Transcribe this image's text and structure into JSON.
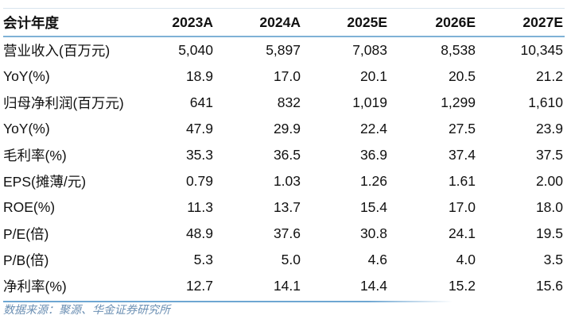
{
  "header": {
    "label": "会计年度",
    "years": [
      "2023A",
      "2024A",
      "2025E",
      "2026E",
      "2027E"
    ]
  },
  "rows": [
    {
      "label": "营业收入(百万元)",
      "values": [
        "5,040",
        "5,897",
        "7,083",
        "8,538",
        "10,345"
      ]
    },
    {
      "label": "YoY(%)",
      "values": [
        "18.9",
        "17.0",
        "20.1",
        "20.5",
        "21.2"
      ]
    },
    {
      "label": "归母净利润(百万元)",
      "values": [
        "641",
        "832",
        "1,019",
        "1,299",
        "1,610"
      ]
    },
    {
      "label": "YoY(%)",
      "values": [
        "47.9",
        "29.9",
        "22.4",
        "27.5",
        "23.9"
      ]
    },
    {
      "label": "毛利率(%)",
      "values": [
        "35.3",
        "36.5",
        "36.9",
        "37.4",
        "37.5"
      ]
    },
    {
      "label": "EPS(摊薄/元)",
      "values": [
        "0.79",
        "1.03",
        "1.26",
        "1.61",
        "2.00"
      ]
    },
    {
      "label": "ROE(%)",
      "values": [
        "11.3",
        "13.7",
        "15.4",
        "17.0",
        "18.0"
      ]
    },
    {
      "label": "P/E(倍)",
      "values": [
        "48.9",
        "37.6",
        "30.8",
        "24.1",
        "19.5"
      ]
    },
    {
      "label": "P/B(倍)",
      "values": [
        "5.3",
        "5.0",
        "4.6",
        "4.0",
        "3.5"
      ]
    },
    {
      "label": "净利率(%)",
      "values": [
        "12.7",
        "14.1",
        "14.4",
        "15.2",
        "15.6"
      ]
    }
  ],
  "source": "数据来源：聚源、华金证券研究所",
  "colors": {
    "rule": "#7fb2d6",
    "source_text": "#6b8fb3"
  }
}
